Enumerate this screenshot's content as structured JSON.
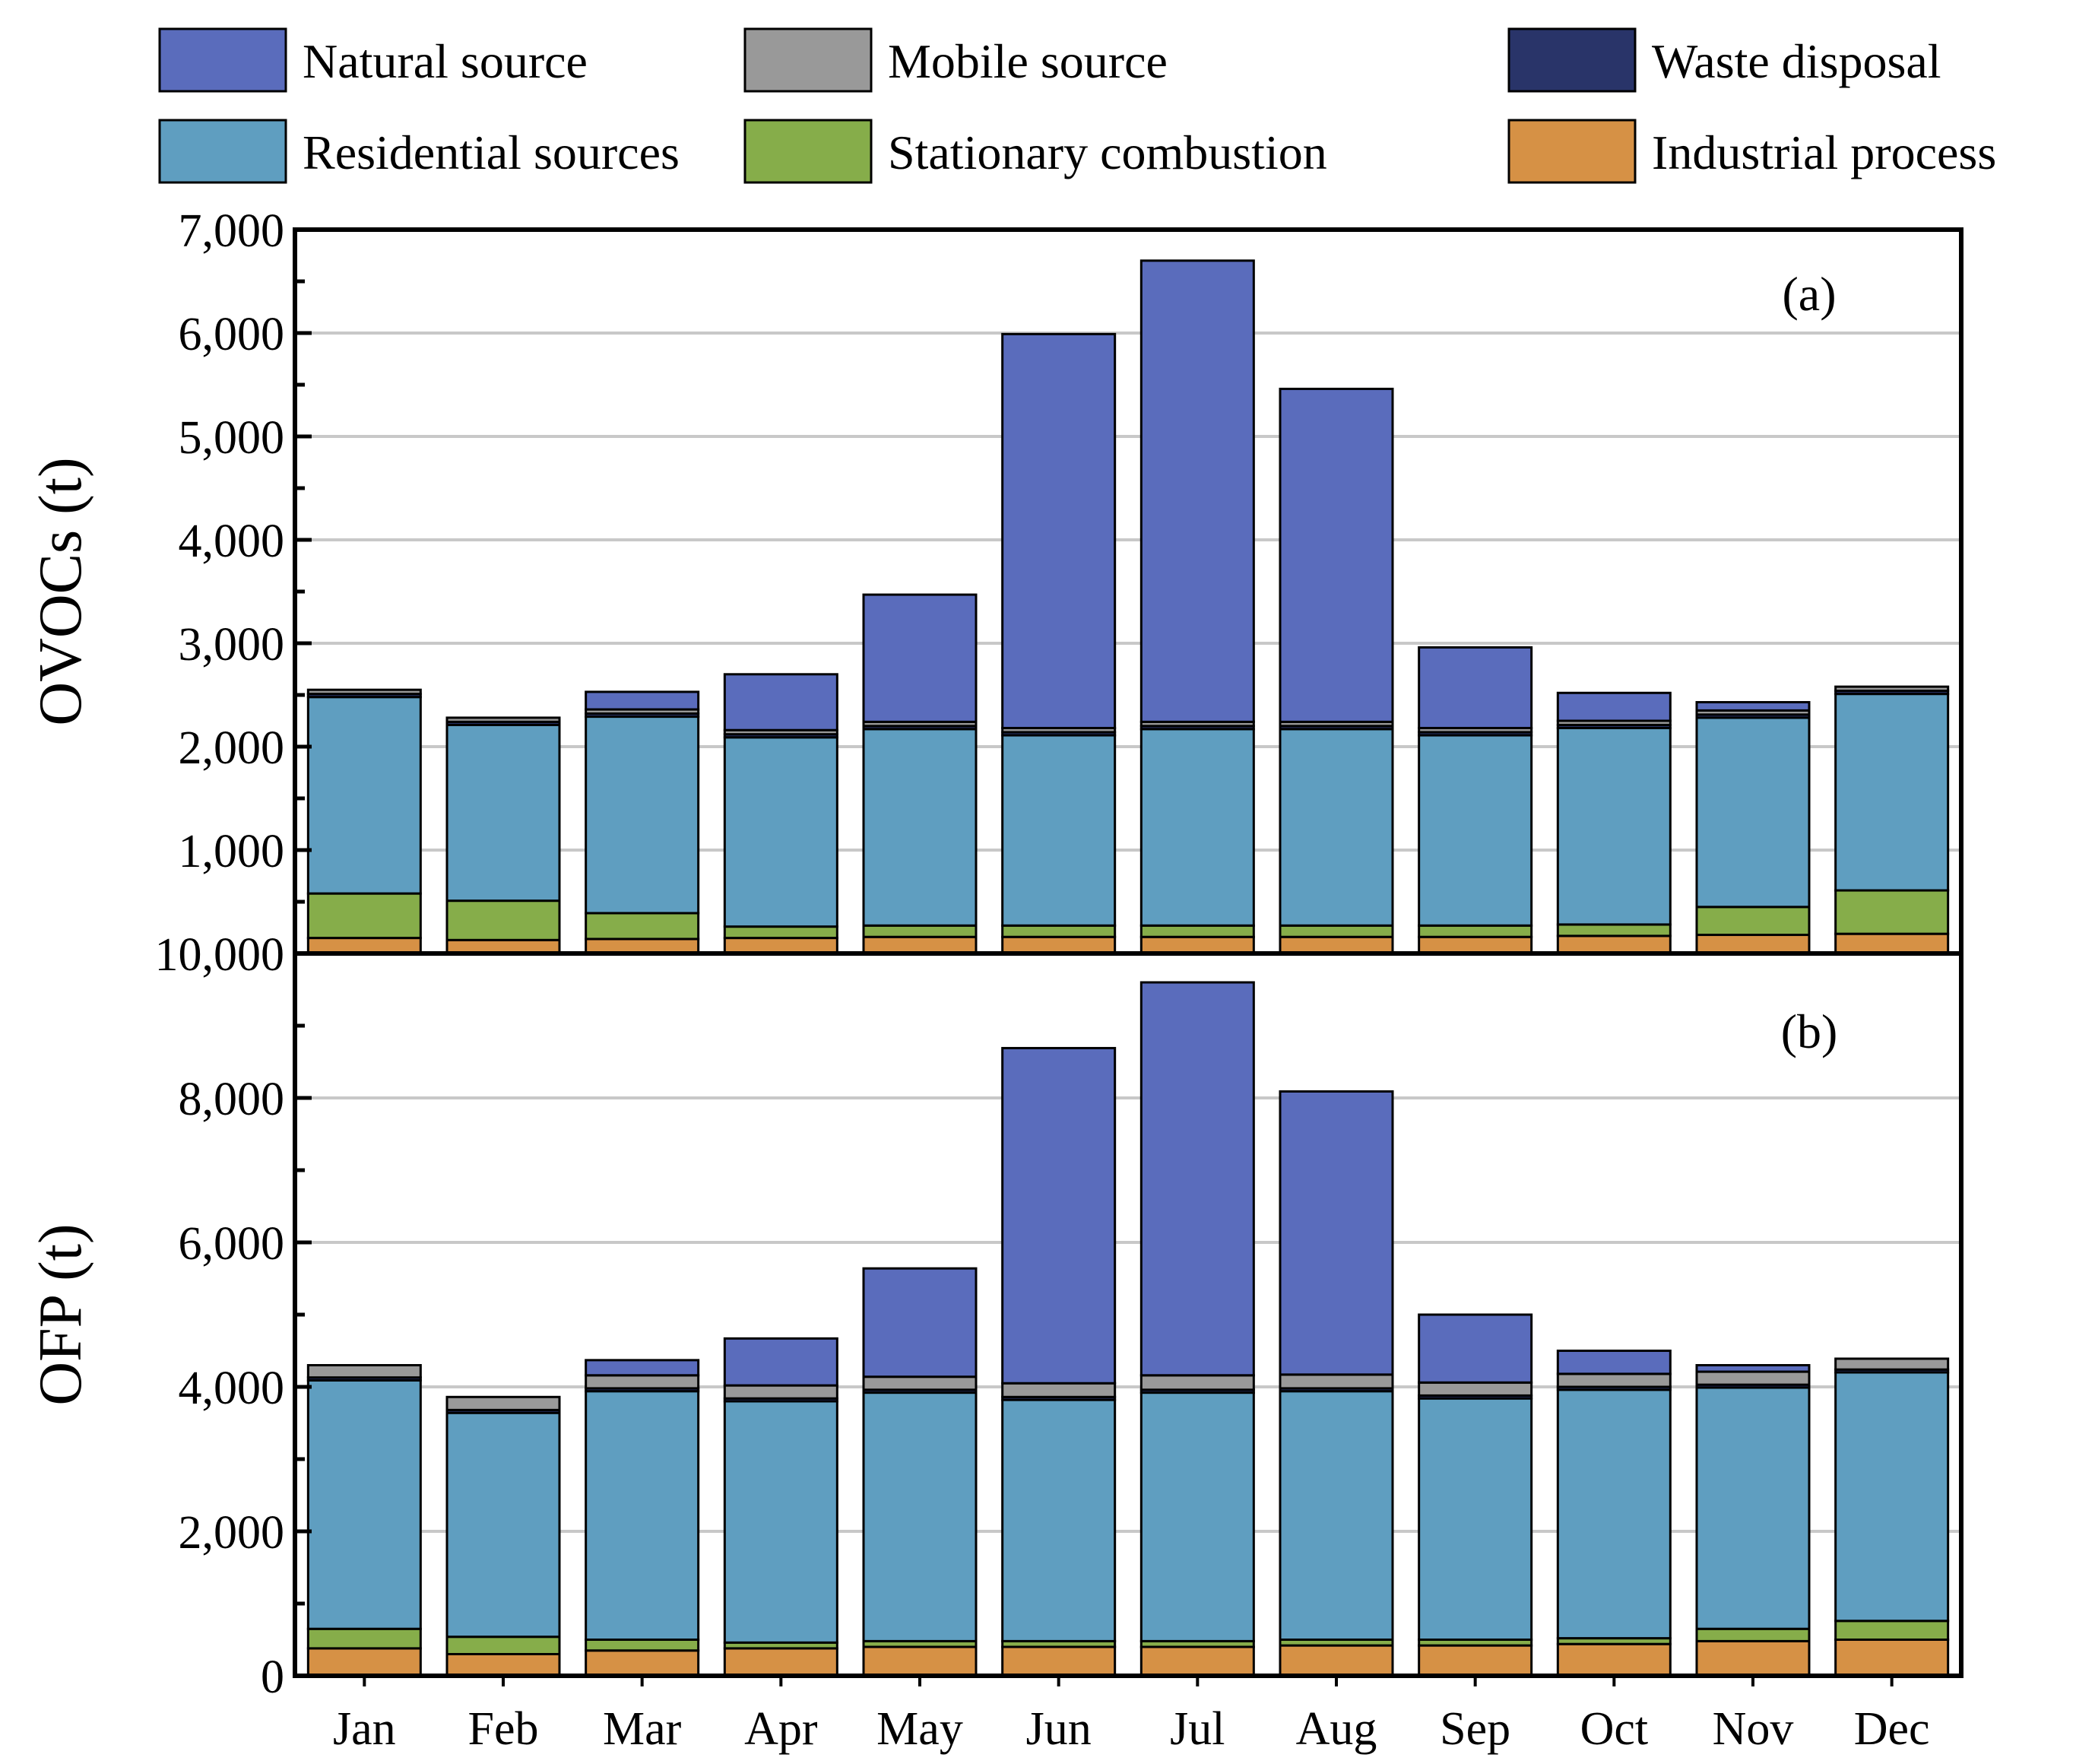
{
  "chart_data": {
    "type": "bar",
    "stacked": true,
    "categories": [
      "Jan",
      "Feb",
      "Mar",
      "Apr",
      "May",
      "Jun",
      "Jul",
      "Aug",
      "Sep",
      "Oct",
      "Nov",
      "Dec"
    ],
    "stack_order": [
      "Industrial process",
      "Stationary combustion",
      "Residential sources",
      "Waste disposal",
      "Mobile source",
      "Natural source"
    ],
    "legend": {
      "placement": "top",
      "entries": [
        {
          "label": "Natural source",
          "color": "#5a6cbc"
        },
        {
          "label": "Mobile source",
          "color": "#999999"
        },
        {
          "label": "Waste disposal",
          "color": "#293469"
        },
        {
          "label": "Residential sources",
          "color": "#5f9ec0"
        },
        {
          "label": "Stationary combustion",
          "color": "#86ad4a"
        },
        {
          "label": "Industrial process",
          "color": "#d69145"
        }
      ]
    },
    "grid": true,
    "panels": [
      {
        "label": "(a)",
        "ylabel": "OVOCs (t)",
        "ylim": [
          0,
          7000
        ],
        "yticks": [
          1000,
          2000,
          3000,
          4000,
          5000,
          6000,
          7000
        ],
        "ytick_labels": [
          "1,000",
          "2,000",
          "3,000",
          "4,000",
          "5,000",
          "6,000",
          "7,000"
        ],
        "series": [
          {
            "name": "Industrial process",
            "values": [
              150,
              130,
              140,
              150,
              160,
              160,
              160,
              160,
              160,
              170,
              180,
              190
            ]
          },
          {
            "name": "Stationary combustion",
            "values": [
              430,
              380,
              250,
              110,
              110,
              110,
              110,
              110,
              110,
              110,
              270,
              420
            ]
          },
          {
            "name": "Residential sources",
            "values": [
              1900,
              1700,
              1900,
              1830,
              1900,
              1840,
              1900,
              1900,
              1840,
              1900,
              1830,
              1900
            ]
          },
          {
            "name": "Waste disposal",
            "values": [
              30,
              30,
              30,
              30,
              30,
              30,
              30,
              30,
              30,
              30,
              30,
              30
            ]
          },
          {
            "name": "Mobile source",
            "values": [
              40,
              40,
              40,
              40,
              40,
              40,
              40,
              40,
              40,
              40,
              40,
              40
            ]
          },
          {
            "name": "Natural source",
            "values": [
              0,
              0,
              170,
              540,
              1230,
              3810,
              4460,
              3220,
              780,
              270,
              80,
              0
            ]
          }
        ]
      },
      {
        "label": "(b)",
        "ylabel": "OFP (t)",
        "ylim": [
          0,
          10000
        ],
        "yticks": [
          0,
          2000,
          4000,
          6000,
          8000,
          10000
        ],
        "ytick_labels": [
          "0",
          "2,000",
          "4,000",
          "6,000",
          "8,000",
          "10,000"
        ],
        "series": [
          {
            "name": "Industrial process",
            "values": [
              380,
              300,
              350,
              380,
              400,
              400,
              400,
              420,
              420,
              440,
              480,
              500
            ]
          },
          {
            "name": "Stationary combustion",
            "values": [
              270,
              240,
              150,
              80,
              80,
              80,
              80,
              80,
              80,
              80,
              170,
              260
            ]
          },
          {
            "name": "Residential sources",
            "values": [
              3440,
              3100,
              3440,
              3340,
              3440,
              3340,
              3440,
              3440,
              3340,
              3440,
              3340,
              3440
            ]
          },
          {
            "name": "Waste disposal",
            "values": [
              40,
              40,
              40,
              40,
              40,
              40,
              40,
              40,
              40,
              40,
              40,
              40
            ]
          },
          {
            "name": "Mobile source",
            "values": [
              170,
              180,
              180,
              180,
              180,
              190,
              200,
              190,
              180,
              180,
              180,
              150
            ]
          },
          {
            "name": "Natural source",
            "values": [
              0,
              0,
              210,
              650,
              1500,
              4640,
              5440,
              3920,
              940,
              320,
              90,
              0
            ]
          }
        ]
      }
    ]
  }
}
